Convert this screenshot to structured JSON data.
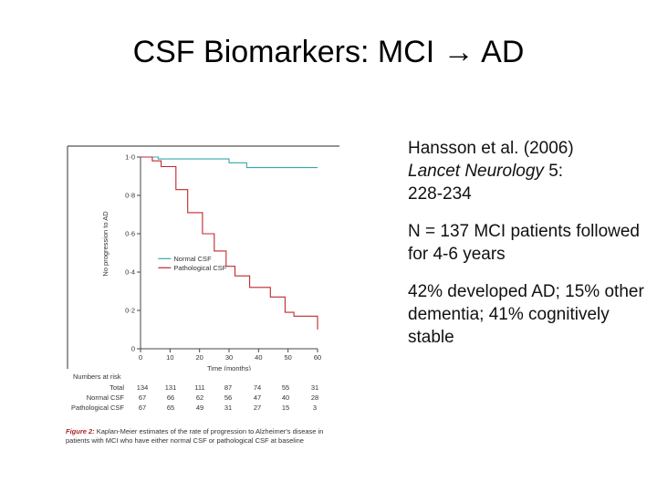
{
  "slide": {
    "title": "CSF Biomarkers: MCI → AD"
  },
  "citation": {
    "authors_year": "Hansson et al. (2006)",
    "journal": "Lancet Neurology",
    "volume": " 5:",
    "pages": "228-234"
  },
  "bullets": {
    "sample": "N = 137 MCI patients followed for 4-6 years",
    "outcome": "42% developed AD; 15% other dementia; 41% cognitively stable"
  },
  "figure_caption": {
    "label": "Figure 2:",
    "text": " Kaplan-Meier estimates of the rate of progression to Alzheimer's disease in patients with MCI who have either normal CSF or pathological CSF at baseline"
  },
  "risk_table": {
    "heading": "Numbers at risk",
    "rows": [
      {
        "label": "Total",
        "values": [
          "134",
          "131",
          "111",
          "87",
          "74",
          "55",
          "31"
        ]
      },
      {
        "label": "Normal CSF",
        "values": [
          "67",
          "66",
          "62",
          "56",
          "47",
          "40",
          "28"
        ]
      },
      {
        "label": "Pathological CSF",
        "values": [
          "67",
          "65",
          "49",
          "31",
          "27",
          "15",
          "3"
        ]
      }
    ]
  },
  "chart_data": {
    "type": "line",
    "step": true,
    "title": "",
    "xlabel": "Time (months)",
    "ylabel": "No progression to AD",
    "xlim": [
      0,
      60
    ],
    "ylim": [
      0,
      1.0
    ],
    "xticks": [
      0,
      10,
      20,
      30,
      40,
      50,
      60
    ],
    "yticks": [
      {
        "value": 0,
        "label": "0"
      },
      {
        "value": 0.2,
        "label": "0·2"
      },
      {
        "value": 0.4,
        "label": "0·4"
      },
      {
        "value": 0.6,
        "label": "0·6"
      },
      {
        "value": 0.8,
        "label": "0·8"
      },
      {
        "value": 1.0,
        "label": "1·0"
      }
    ],
    "legend_position": "middle-left",
    "grid": false,
    "series": [
      {
        "name": "Normal CSF",
        "color": "#3aa8a8",
        "x": [
          0,
          6,
          6,
          30,
          30,
          36,
          36,
          60
        ],
        "y": [
          1.0,
          1.0,
          0.99,
          0.99,
          0.97,
          0.97,
          0.945,
          0.945
        ]
      },
      {
        "name": "Pathological CSF",
        "color": "#c0282c",
        "x": [
          0,
          4,
          4,
          7,
          7,
          12,
          12,
          16,
          16,
          21,
          21,
          25,
          25,
          29,
          29,
          32,
          32,
          37,
          37,
          44,
          44,
          49,
          49,
          52,
          52,
          60,
          60
        ],
        "y": [
          1.0,
          1.0,
          0.98,
          0.98,
          0.95,
          0.95,
          0.83,
          0.83,
          0.71,
          0.71,
          0.6,
          0.6,
          0.51,
          0.51,
          0.43,
          0.43,
          0.38,
          0.38,
          0.32,
          0.32,
          0.27,
          0.27,
          0.19,
          0.19,
          0.17,
          0.17,
          0.1
        ]
      }
    ]
  }
}
